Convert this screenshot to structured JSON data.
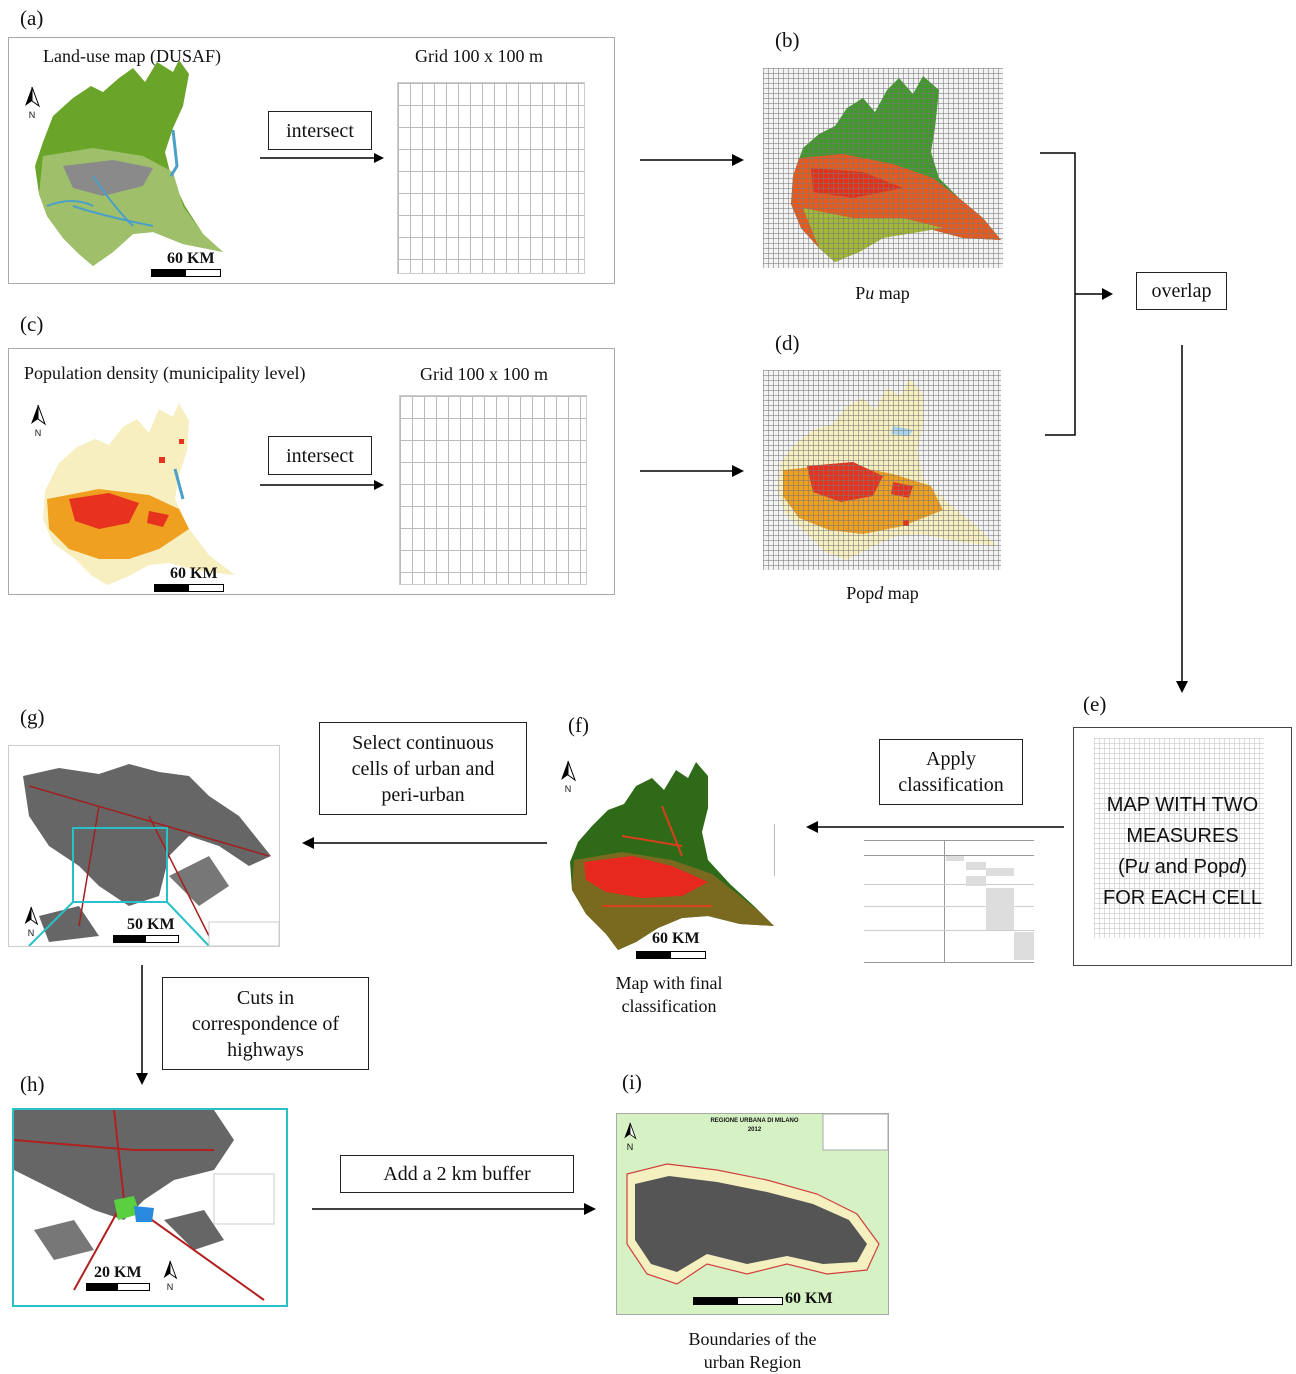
{
  "panels": {
    "a": {
      "label": "(a)",
      "map_title": "Land-use map (DUSAF)",
      "grid_title": "Grid 100 x 100 m",
      "scale": "60 KM",
      "action": "intersect"
    },
    "b": {
      "label": "(b)",
      "caption_pre": "P",
      "caption_ital": "u",
      "caption_post": " map"
    },
    "c": {
      "label": "(c)",
      "map_title": "Population density (municipality level)",
      "grid_title": "Grid 100 x 100 m",
      "scale": "60 KM",
      "action": "intersect"
    },
    "d": {
      "label": "(d)",
      "caption_pre": "Pop",
      "caption_ital": "d",
      "caption_post": " map"
    },
    "overlap": "overlap",
    "e": {
      "label": "(e)",
      "line1": "MAP WITH TWO",
      "line2": "MEASURES",
      "line3_pre": "(P",
      "line3_i1": "u",
      "line3_mid": " and Pop",
      "line3_i2": "d",
      "line3_post": ")",
      "line4": "FOR EACH CELL"
    },
    "apply": {
      "line1": "Apply",
      "line2": "classification"
    },
    "f": {
      "label": "(f)",
      "scale": "60 KM",
      "caption1": "Map with final",
      "caption2": "classification"
    },
    "select": {
      "line1": "Select continuous",
      "line2": "cells of urban and",
      "line3": "peri-urban"
    },
    "g": {
      "label": "(g)",
      "scale": "50 KM"
    },
    "cuts": {
      "line1": "Cuts in",
      "line2": "correspondence of",
      "line3": "highways"
    },
    "h": {
      "label": "(h)",
      "scale": "20 KM"
    },
    "buffer": "Add a 2 km buffer",
    "i": {
      "label": "(i)",
      "map_title1": "REGIONE URBANA DI MILANO",
      "map_title2": "2012",
      "scale": "60 KM",
      "caption1": "Boundaries of the",
      "caption2": "urban Region"
    },
    "north_label": "N",
    "colors": {
      "forest": "#3a8a1e",
      "urban": "#e6321e",
      "light": "#f7efbf",
      "orange": "#f2a21d",
      "grey": "#6b6b6b",
      "green_bg": "#d6f2c4"
    }
  }
}
